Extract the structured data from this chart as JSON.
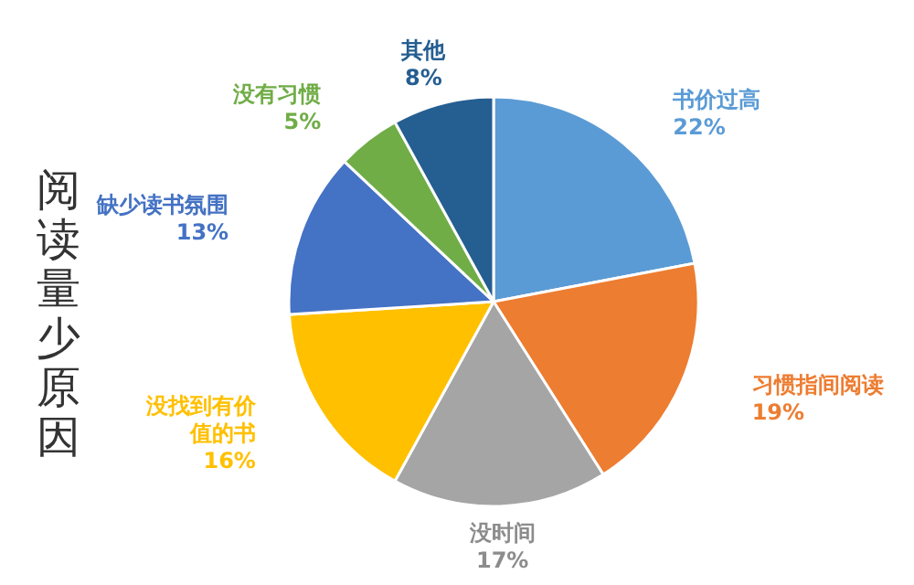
{
  "chart_data": {
    "type": "pie",
    "title": "阅读量少原因",
    "categories": [
      "书价过高",
      "习惯指间阅读",
      "没时间",
      "没找到有价值的书",
      "缺少读书氛围",
      "没有习惯",
      "其他"
    ],
    "values": [
      22,
      19,
      17,
      16,
      13,
      5,
      8
    ],
    "colors": [
      "#5b9bd5",
      "#ed7d31",
      "#a5a5a5",
      "#ffc000",
      "#4472c4",
      "#70ad47",
      "#255e91"
    ],
    "value_labels": [
      "22%",
      "19%",
      "17%",
      "16%",
      "13%",
      "5%",
      "8%"
    ]
  }
}
